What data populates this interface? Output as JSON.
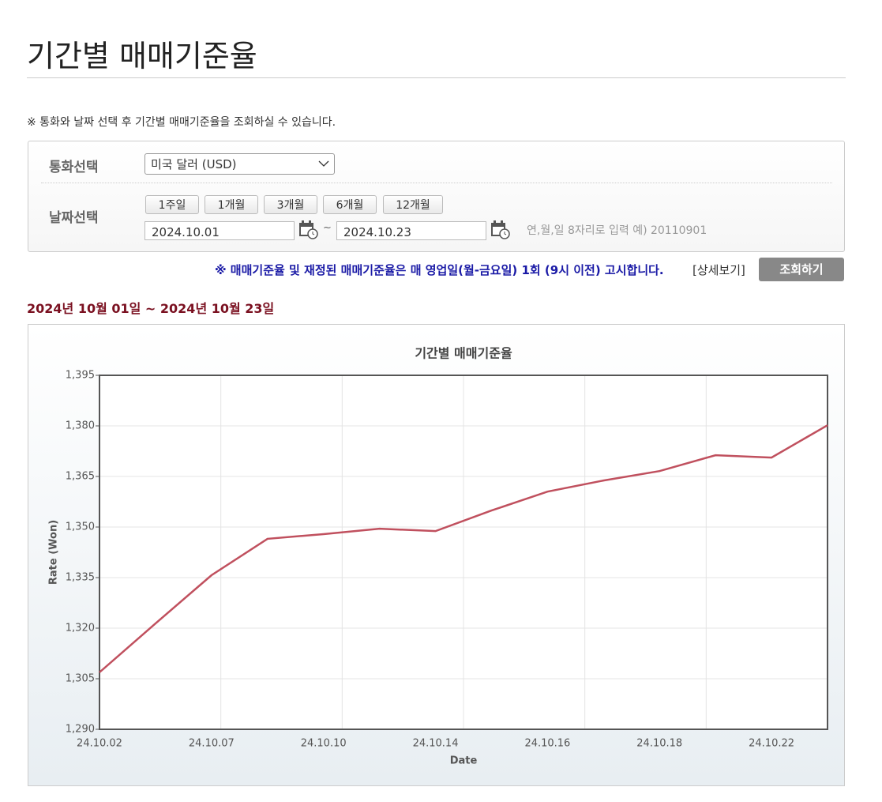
{
  "header": {
    "title": "기간별 매매기준율"
  },
  "note": "※ 통화와 날짜 선택 후 기간별 매매기준율을 조회하실 수 있습니다.",
  "form": {
    "currency_label": "통화선택",
    "currency_value": "미국 달러 (USD)",
    "date_label": "날짜선택",
    "period_buttons": [
      "1주일",
      "1개월",
      "3개월",
      "6개월",
      "12개월"
    ],
    "start_date": "2024.10.01",
    "separator": "~",
    "end_date": "2024.10.23",
    "hint": "연,월,일 8자리로 입력 예) 20110901"
  },
  "notice": "※ 매매기준율 및 재정된 매매기준율은 매 영업일(월-금요일) 1회 (9시 이전) 고시합니다.",
  "detail_link": "[상세보기]",
  "search_button": "조회하기",
  "period": "2024년 10월 01일 ~ 2024년 10월 23일",
  "chart_data": {
    "type": "line",
    "title": "기간별 매매기준율",
    "x_label": "Date",
    "y_label": "Rate (Won)",
    "categories": [
      "24.10.02",
      null,
      "24.10.07",
      null,
      "24.10.10",
      null,
      "24.10.14",
      null,
      "24.10.16",
      null,
      "24.10.18",
      null,
      "24.10.22",
      null
    ],
    "series": [
      {
        "name": "매매기준율",
        "color": "#c0505e",
        "values": [
          1306.9,
          1321.4,
          1335.7,
          1346.5,
          1347.9,
          1349.5,
          1348.8,
          1354.9,
          1360.5,
          1363.8,
          1366.6,
          1371.3,
          1370.6,
          1380.2
        ]
      }
    ],
    "ylim": [
      1290,
      1395
    ],
    "yticks": [
      {
        "value": 1290,
        "label": "1,290"
      },
      {
        "value": 1305,
        "label": "1,305"
      },
      {
        "value": 1320,
        "label": "1,320"
      },
      {
        "value": 1335,
        "label": "1,335"
      },
      {
        "value": 1350,
        "label": "1,350"
      },
      {
        "value": 1365,
        "label": "1,365"
      },
      {
        "value": 1380,
        "label": "1,380"
      },
      {
        "value": 1395,
        "label": "1,395"
      }
    ],
    "grid": true
  }
}
